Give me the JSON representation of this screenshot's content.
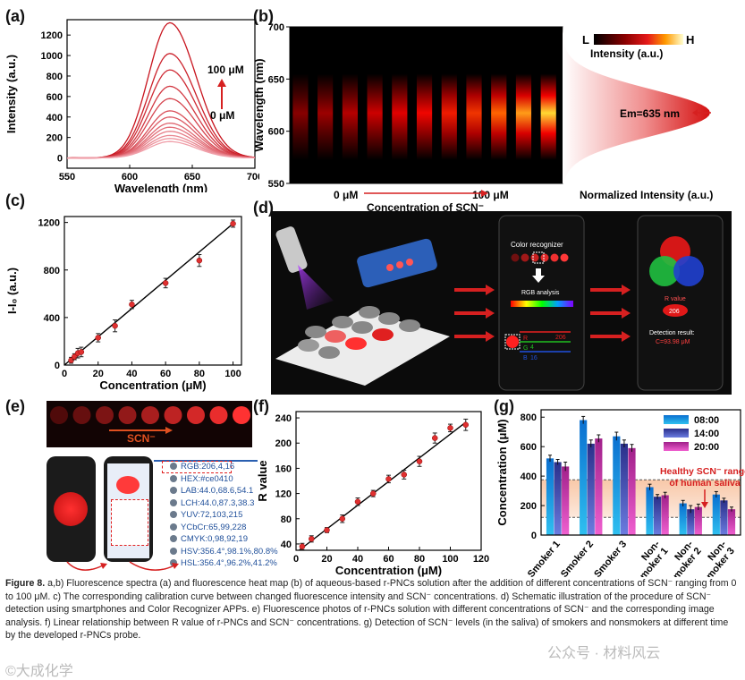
{
  "panel_labels": {
    "a": "(a)",
    "b": "(b)",
    "c": "(c)",
    "d": "(d)",
    "e": "(e)",
    "f": "(f)",
    "g": "(g)"
  },
  "colors": {
    "red": "#d62020",
    "dark_red": "#b01010",
    "pink": "#e89090"
  },
  "chart_data": [
    {
      "id": "a",
      "type": "line",
      "title": "",
      "xlabel": "Wavelength (nm)",
      "ylabel": "Intensity (a.u.)",
      "xlim": [
        550,
        700
      ],
      "ylim": [
        -100,
        1350
      ],
      "xticks": [
        "550",
        "600",
        "650",
        "700"
      ],
      "yticks": [
        "0",
        "200",
        "400",
        "600",
        "800",
        "1000",
        "1200"
      ],
      "peak_wavelength": 632,
      "peak_values": [
        1320,
        1020,
        860,
        700,
        580,
        460,
        400,
        340,
        300,
        260,
        220,
        190,
        160
      ],
      "annotation_high": "100 μM",
      "annotation_low": "0 μM"
    },
    {
      "id": "b",
      "type": "heatmap",
      "ylabel": "Wavelength (nm)",
      "yticks": [
        "700",
        "650",
        "600",
        "550"
      ],
      "ylim": [
        550,
        700
      ],
      "xlabel": "Concentration of SCN⁻",
      "x_start": "0 μM",
      "x_end": "100 μM",
      "columns": [
        0.05,
        0.12,
        0.2,
        0.28,
        0.35,
        0.42,
        0.5,
        0.6,
        0.7,
        0.82,
        0.95
      ],
      "colorbar_low": "L",
      "colorbar_high": "H",
      "colorbar_label": "Intensity (a.u.)",
      "profile_label": "Normalized Intensity (a.u.)",
      "emission_label": "Em=635 nm"
    },
    {
      "id": "c",
      "type": "scatter",
      "xlabel": "Concentration (μM)",
      "ylabel": "I-I₀ (a.u.)",
      "xlim": [
        0,
        105
      ],
      "ylim": [
        0,
        1250
      ],
      "xticks": [
        "0",
        "20",
        "40",
        "60",
        "80",
        "100"
      ],
      "yticks": [
        "0",
        "400",
        "800",
        "1200"
      ],
      "x": [
        4,
        6,
        8,
        10,
        20,
        30,
        40,
        60,
        80,
        100
      ],
      "y": [
        40,
        70,
        100,
        110,
        230,
        330,
        510,
        690,
        880,
        1190
      ],
      "err": [
        25,
        25,
        40,
        40,
        35,
        50,
        35,
        40,
        50,
        30
      ],
      "fit": [
        [
          0,
          0
        ],
        [
          100,
          1190
        ]
      ]
    },
    {
      "id": "f",
      "type": "scatter",
      "xlabel": "Concentration (μM)",
      "ylabel": "R value",
      "xlim": [
        0,
        120
      ],
      "ylim": [
        30,
        250
      ],
      "xticks": [
        "0",
        "20",
        "40",
        "60",
        "80",
        "100",
        "120"
      ],
      "yticks": [
        "40",
        "80",
        "120",
        "160",
        "200",
        "240"
      ],
      "x": [
        4,
        10,
        20,
        30,
        40,
        50,
        60,
        70,
        80,
        90,
        100,
        110
      ],
      "y": [
        36,
        48,
        62,
        80,
        107,
        120,
        143,
        150,
        171,
        208,
        224,
        229
      ],
      "err": [
        5,
        5,
        4,
        6,
        6,
        5,
        6,
        7,
        8,
        8,
        6,
        9
      ],
      "fit": [
        [
          2,
          30
        ],
        [
          110,
          233
        ]
      ]
    },
    {
      "id": "g",
      "type": "bar",
      "ylabel": "Concentration (μM)",
      "ylim": [
        0,
        850
      ],
      "yticks": [
        "0",
        "200",
        "400",
        "600",
        "800"
      ],
      "categories": [
        "Smoker 1",
        "Smoker 2",
        "Smoker 3",
        "Non-smoker 1",
        "Non-smoker 2",
        "Non-smoker 3"
      ],
      "series": [
        {
          "name": "08:00",
          "values": [
            520,
            780,
            670,
            325,
            215,
            275
          ],
          "err": [
            22,
            25,
            28,
            20,
            20,
            20
          ]
        },
        {
          "name": "14:00",
          "values": [
            495,
            620,
            620,
            260,
            175,
            235
          ],
          "err": [
            18,
            25,
            25,
            15,
            25,
            15
          ]
        },
        {
          "name": "20:00",
          "values": [
            465,
            655,
            590,
            270,
            190,
            175
          ],
          "err": [
            30,
            25,
            25,
            20,
            20,
            15
          ]
        }
      ],
      "healthy_range": [
        120,
        375
      ],
      "annotation": "Healthy SCN⁻ range of human saliva"
    }
  ],
  "panel_b": {
    "x_start": "0 μM",
    "x_end": "100 μM",
    "xlabel": "Concentration of SCN⁻"
  },
  "panel_d": {
    "screen1_title": "Color recognizer",
    "rgb_analysis": "RGB analysis",
    "r_num": "206",
    "g_num": "4",
    "b_num": "16",
    "r_lab": "R",
    "g_lab": "G",
    "b_lab": "B",
    "screen2_rvalue": "R value",
    "screen2_num": "206",
    "detection_result": "Detection result:",
    "detection_value": "C=93.98 μM"
  },
  "panel_e": {
    "scn_label": "SCN⁻",
    "rgb_rows": [
      "RGB:206,4,16",
      "HEX:#ce0410",
      "LAB:44.0,68.6,54.1",
      "LCH:44.0,87.3,38.3",
      "YUV:72,103,215",
      "YCbCr:65,99,228",
      "CMYK:0,98,92,19",
      "HSV:356.4°,98.1%,80.8%",
      "HSL:356.4°,96.2%,41.2%"
    ]
  },
  "caption": {
    "figure_label": "Figure 8.",
    "text": "a,b) Fluorescence spectra (a) and fluorescence heat map (b) of aqueous-based r-PNCs solution after the addition of different concentrations of SCN⁻ ranging from 0 to 100 μM. c) The corresponding calibration curve between changed fluorescence intensity and SCN⁻ concentrations. d) Schematic illustration of the procedure of SCN⁻ detection using smartphones and Color Recognizer APPs. e) Fluorescence photos of r-PNCs solution with different concentrations of SCN⁻ and the corresponding image analysis. f) Linear relationship between R value of r-PNCs and SCN⁻ concentrations. g) Detection of SCN⁻ levels (in the saliva) of smokers and nonsmokers at different time by the developed r-PNCs probe."
  },
  "watermarks": {
    "left": "©大成化学",
    "right": "公众号 · 材料风云"
  }
}
